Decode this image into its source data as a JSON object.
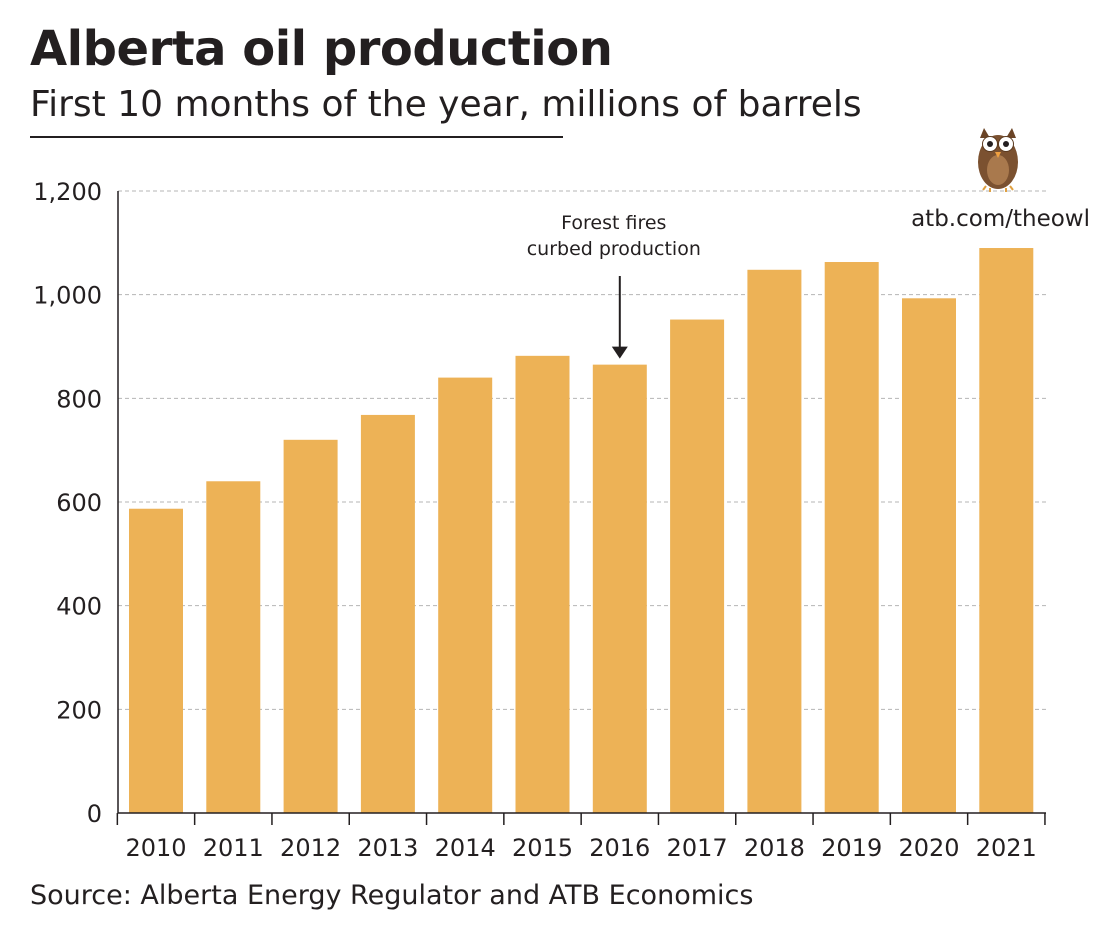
{
  "header": {
    "title": "Alberta oil production",
    "subtitle": "First 10 months of the year, millions of barrels"
  },
  "footer": {
    "source": "Source: Alberta Energy Regulator and ATB Economics"
  },
  "branding": {
    "url": "atb.com/theowl",
    "icon": "owl-icon"
  },
  "colors": {
    "bar": "#EDB256",
    "gridline": "#b5b5b5",
    "axis": "#231f20",
    "text": "#231f20"
  },
  "chart_data": {
    "type": "bar",
    "title": "Alberta oil production",
    "subtitle": "First 10 months of the year, millions of barrels",
    "xlabel": "",
    "ylabel": "",
    "categories": [
      "2010",
      "2011",
      "2012",
      "2013",
      "2014",
      "2015",
      "2016",
      "2017",
      "2018",
      "2019",
      "2020",
      "2021"
    ],
    "values": [
      587,
      640,
      720,
      768,
      840,
      882,
      865,
      952,
      1048,
      1063,
      993,
      1090
    ],
    "ylim": [
      0,
      1200
    ],
    "yticks": [
      0,
      200,
      400,
      600,
      800,
      1000,
      1200
    ],
    "ytick_labels": [
      "0",
      "200",
      "400",
      "600",
      "800",
      "1,000",
      "1,200"
    ],
    "grid": true,
    "annotations": [
      {
        "category": "2016",
        "lines": [
          "Forest fires",
          "curbed production"
        ]
      }
    ]
  }
}
